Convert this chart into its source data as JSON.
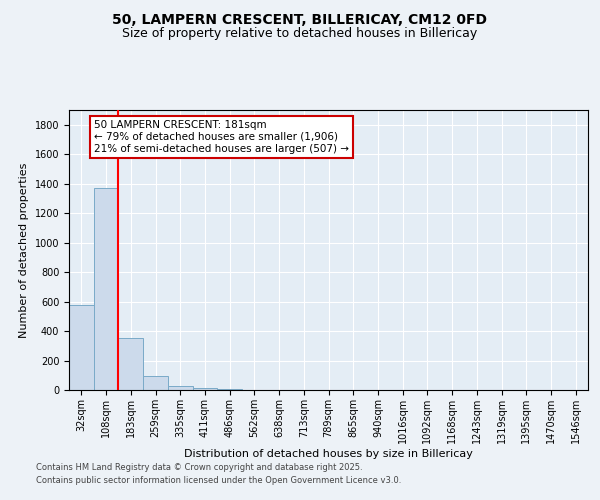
{
  "title": "50, LAMPERN CRESCENT, BILLERICAY, CM12 0FD",
  "subtitle": "Size of property relative to detached houses in Billericay",
  "xlabel": "Distribution of detached houses by size in Billericay",
  "ylabel": "Number of detached properties",
  "bar_labels": [
    "32sqm",
    "108sqm",
    "183sqm",
    "259sqm",
    "335sqm",
    "411sqm",
    "486sqm",
    "562sqm",
    "638sqm",
    "713sqm",
    "789sqm",
    "865sqm",
    "940sqm",
    "1016sqm",
    "1092sqm",
    "1168sqm",
    "1243sqm",
    "1319sqm",
    "1395sqm",
    "1470sqm",
    "1546sqm"
  ],
  "bar_values": [
    580,
    1370,
    350,
    95,
    30,
    15,
    5,
    2,
    0,
    0,
    0,
    0,
    0,
    0,
    0,
    0,
    0,
    0,
    0,
    0,
    0
  ],
  "bar_color": "#ccdaeb",
  "bar_edge_color": "#7aaac8",
  "ylim": [
    0,
    1900
  ],
  "yticks": [
    0,
    200,
    400,
    600,
    800,
    1000,
    1200,
    1400,
    1600,
    1800
  ],
  "red_line_index": 2,
  "annotation_line1": "50 LAMPERN CRESCENT: 181sqm",
  "annotation_line2": "← 79% of detached houses are smaller (1,906)",
  "annotation_line3": "21% of semi-detached houses are larger (507) →",
  "annotation_box_color": "#ffffff",
  "annotation_box_edge_color": "#cc0000",
  "footer_line1": "Contains HM Land Registry data © Crown copyright and database right 2025.",
  "footer_line2": "Contains public sector information licensed under the Open Government Licence v3.0.",
  "background_color": "#edf2f7",
  "plot_background": "#e4edf5",
  "grid_color": "#ffffff",
  "title_fontsize": 10,
  "subtitle_fontsize": 9,
  "tick_fontsize": 7,
  "ylabel_fontsize": 8,
  "xlabel_fontsize": 8,
  "footer_fontsize": 6,
  "annotation_fontsize": 7.5
}
